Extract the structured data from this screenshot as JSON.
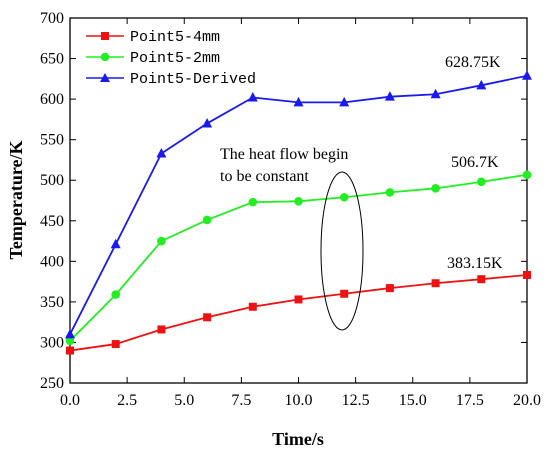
{
  "chart_data": {
    "type": "line",
    "xlabel": "Time/s",
    "ylabel": "Temperature/K",
    "xlim": [
      0,
      20
    ],
    "ylim": [
      250,
      700
    ],
    "x_ticks": [
      "0.0",
      "2.5",
      "5.0",
      "7.5",
      "10.0",
      "12.5",
      "15.0",
      "17.5",
      "20.0"
    ],
    "y_ticks": [
      "250",
      "300",
      "350",
      "400",
      "450",
      "500",
      "550",
      "600",
      "650",
      "700"
    ],
    "grid": false,
    "legend_position": "top-left",
    "x": [
      0,
      2,
      4,
      6,
      8,
      10,
      12,
      14,
      16,
      18,
      20
    ],
    "series": [
      {
        "name": "Point5-4mm",
        "color": "#ee1111",
        "marker": "square",
        "values": [
          290,
          298,
          316,
          331,
          344,
          353,
          360,
          367,
          373,
          378,
          383.15
        ]
      },
      {
        "name": "Point5-2mm",
        "color": "#22ee22",
        "marker": "circle",
        "values": [
          302,
          359,
          425,
          451,
          473,
          474,
          479,
          485,
          490,
          498,
          506.7
        ]
      },
      {
        "name": "Point5-Derived",
        "color": "#1a1aee",
        "marker": "triangle",
        "values": [
          310,
          421,
          533,
          570,
          602,
          596,
          596,
          603,
          606,
          617,
          628.75
        ]
      }
    ],
    "annotations": {
      "end_label_4mm": "383.15K",
      "end_label_2mm": "506.7K",
      "end_label_derived": "628.75K",
      "note_line1": "The heat flow begin",
      "note_line2": "to be constant"
    }
  }
}
